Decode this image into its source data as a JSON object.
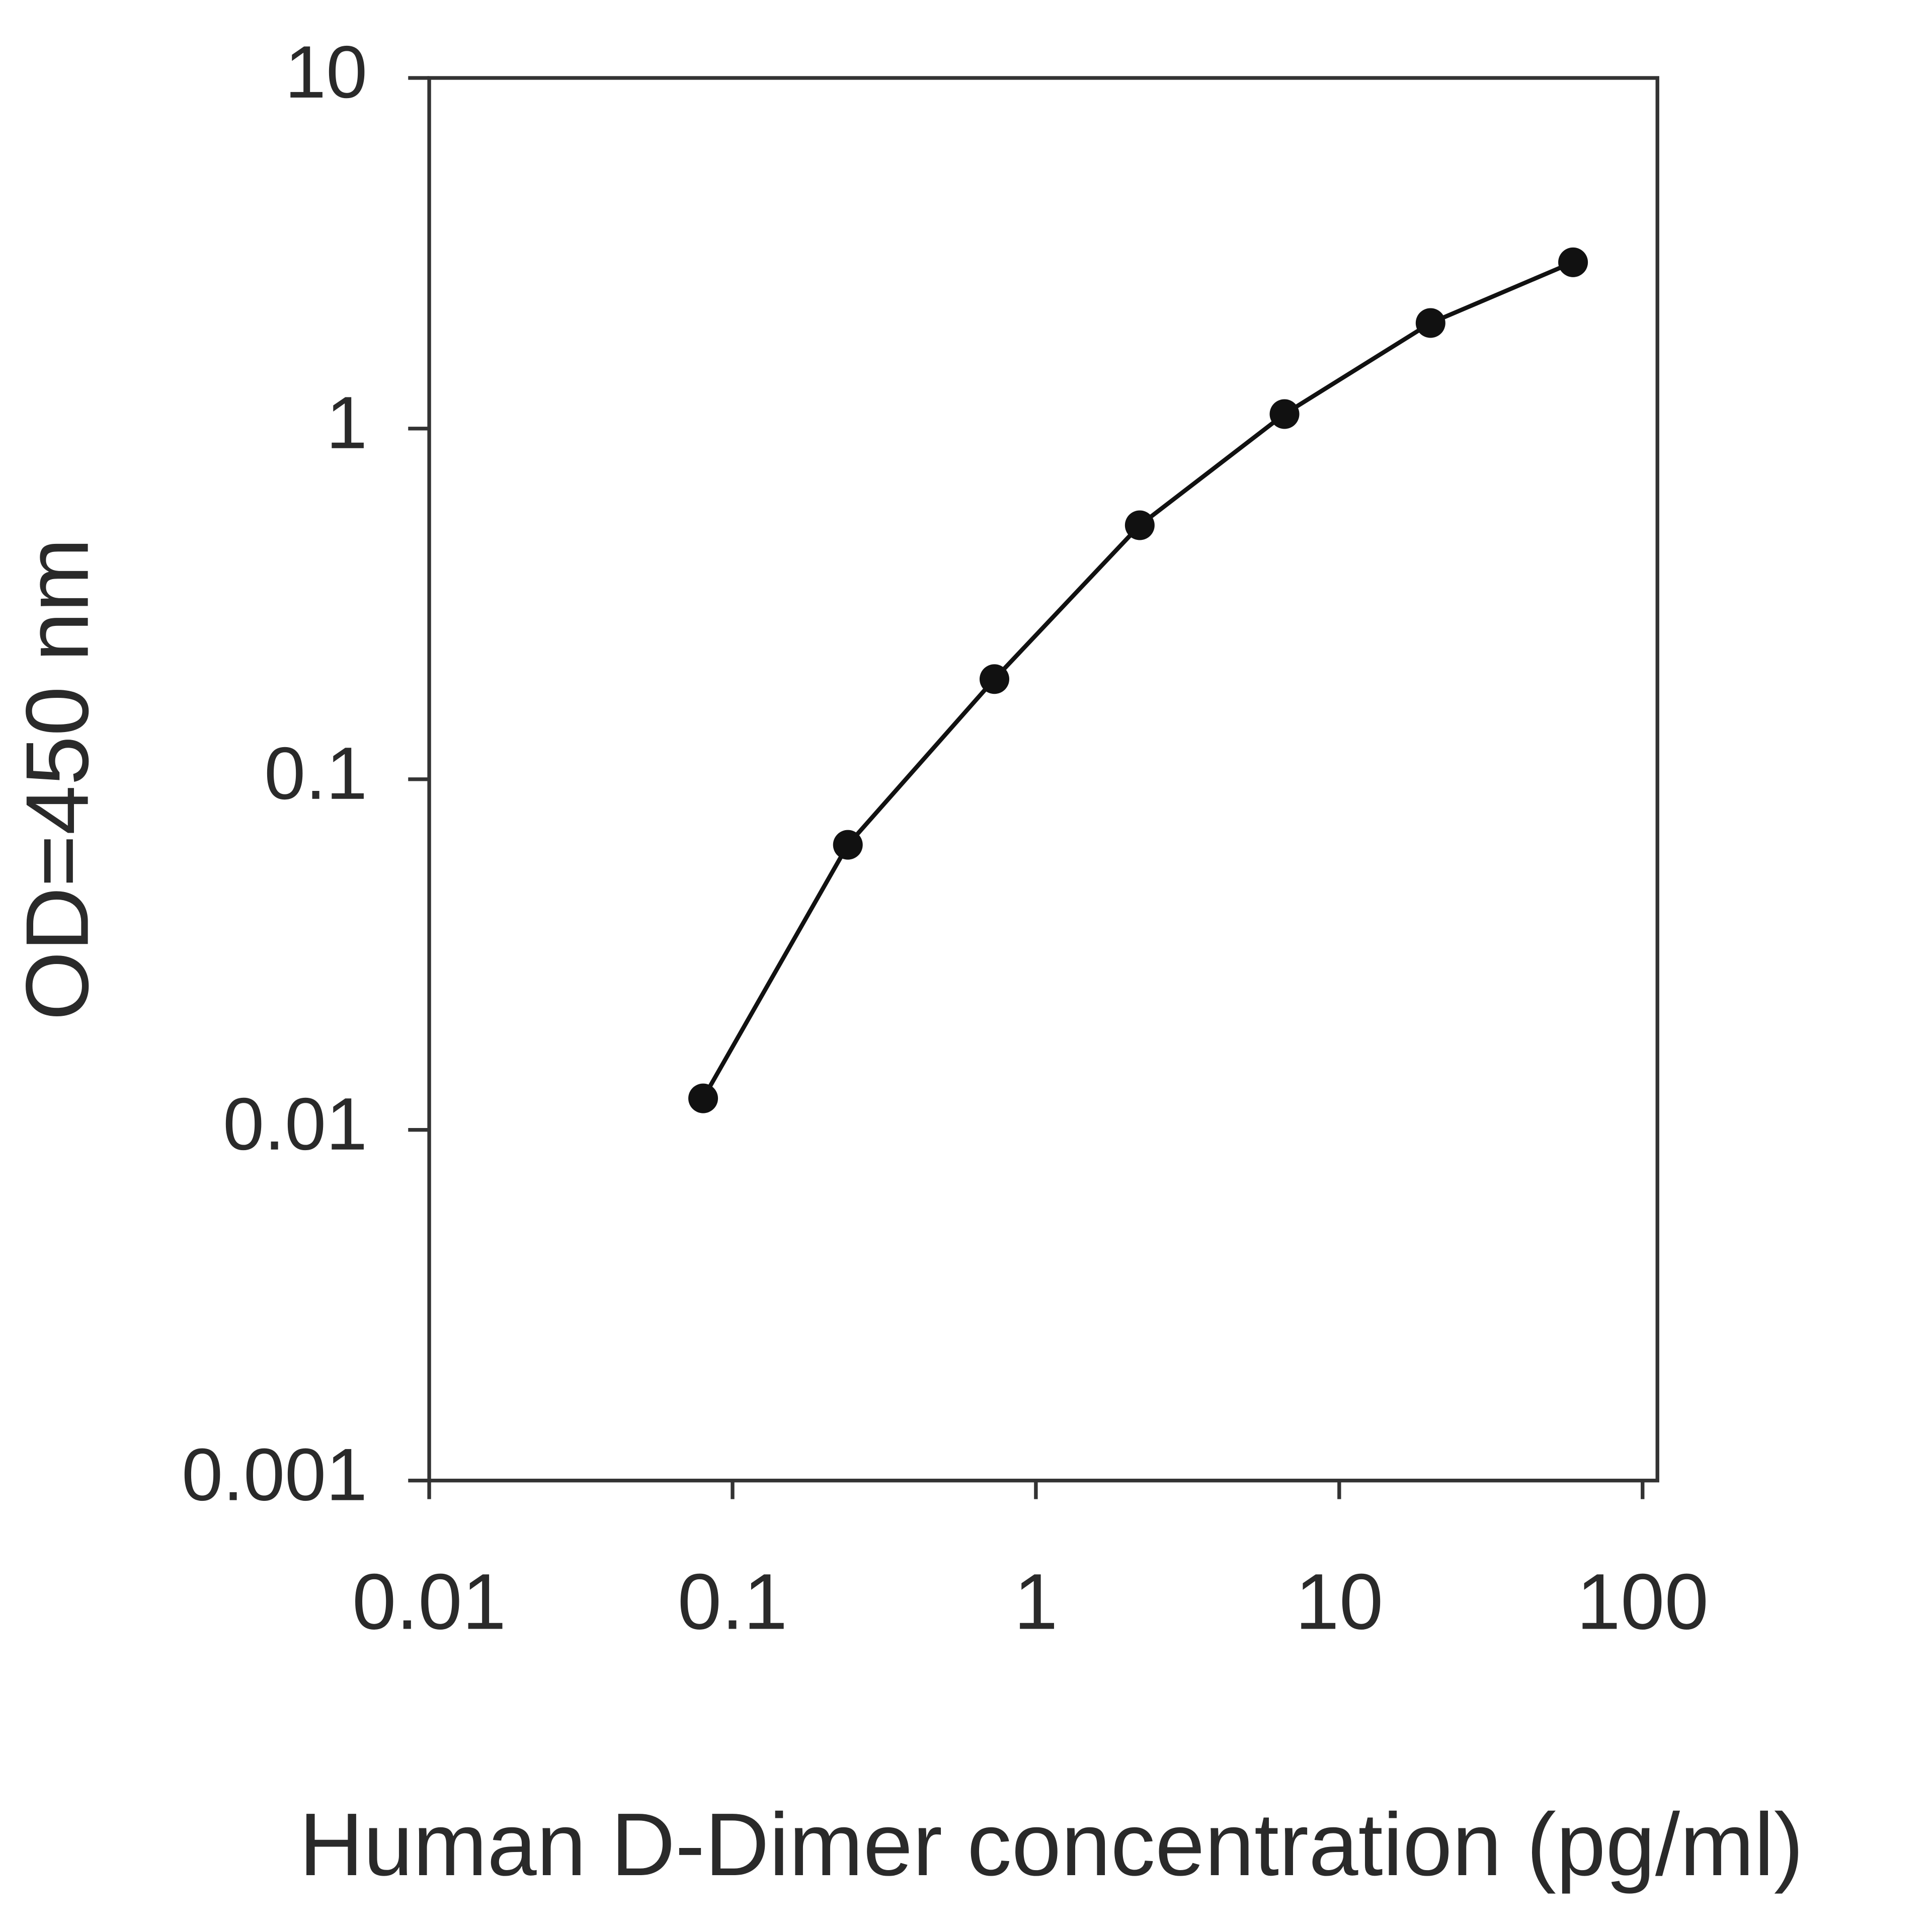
{
  "chart_data": {
    "type": "line",
    "x_label": "Human D-Dimer concentration (pg/ml)",
    "y_label": "OD=450 nm",
    "x": [
      0.08,
      0.24,
      0.73,
      2.2,
      6.6,
      20,
      59
    ],
    "series": [
      {
        "color": "#111111",
        "values": [
          0.0123,
          0.065,
          0.193,
          0.53,
          1.1,
          2.0,
          2.98
        ]
      }
    ],
    "xscale": "log",
    "yscale": "log",
    "xlim": [
      0.01,
      100
    ],
    "xticks": [
      0.01,
      0.1,
      1,
      10,
      100
    ],
    "ylim": [
      0.001,
      10
    ],
    "yticks": [
      0.001,
      0.01,
      0.1,
      1,
      10
    ],
    "grid": false
  }
}
